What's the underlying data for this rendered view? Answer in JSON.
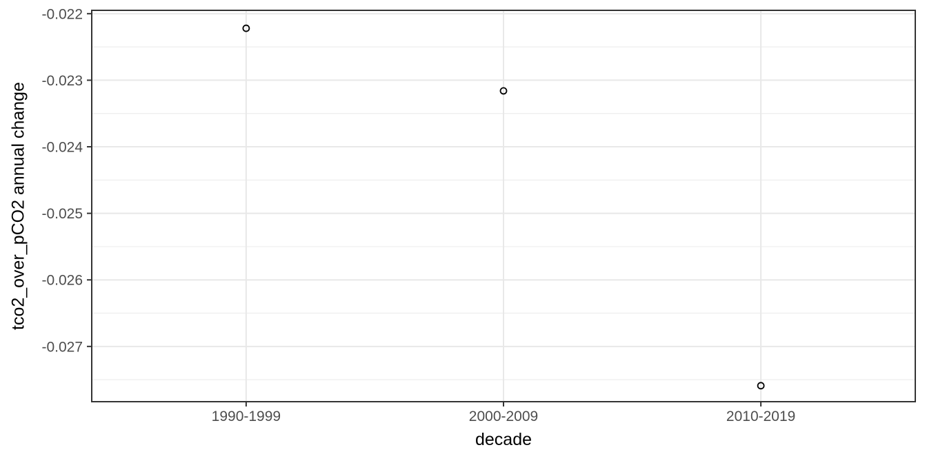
{
  "chart_data": {
    "type": "scatter",
    "title": "",
    "xlabel": "decade",
    "ylabel": "tco2_over_pCO2 annual change",
    "categories": [
      "1990-1999",
      "2000-2009",
      "2010-2019"
    ],
    "values": [
      -0.02222,
      -0.02316,
      -0.02759
    ],
    "series": [
      {
        "name": "tco2_over_pCO2 annual change",
        "values": [
          -0.02222,
          -0.02316,
          -0.02759
        ]
      }
    ],
    "y_ticks": [
      -0.022,
      -0.023,
      -0.024,
      -0.025,
      -0.026,
      -0.027
    ],
    "y_tick_labels": [
      "-0.022",
      "-0.023",
      "-0.024",
      "-0.025",
      "-0.026",
      "-0.027"
    ],
    "y_minor_ticks": [
      -0.0225,
      -0.0235,
      -0.0245,
      -0.0255,
      -0.0265,
      -0.0275
    ],
    "ylim": [
      -0.02783,
      -0.02195
    ],
    "grid": true,
    "legend": false,
    "marker": "open-circle",
    "style": {
      "background": "#ffffff",
      "panel_background": "#ffffff",
      "panel_border_color": "#333333",
      "major_grid_color": "#e8e8e8",
      "minor_grid_color": "#ededed",
      "tick_color": "#333333",
      "tick_label_color": "#4d4d4d",
      "axis_title_color": "#000000",
      "point_color": "#000000"
    }
  }
}
